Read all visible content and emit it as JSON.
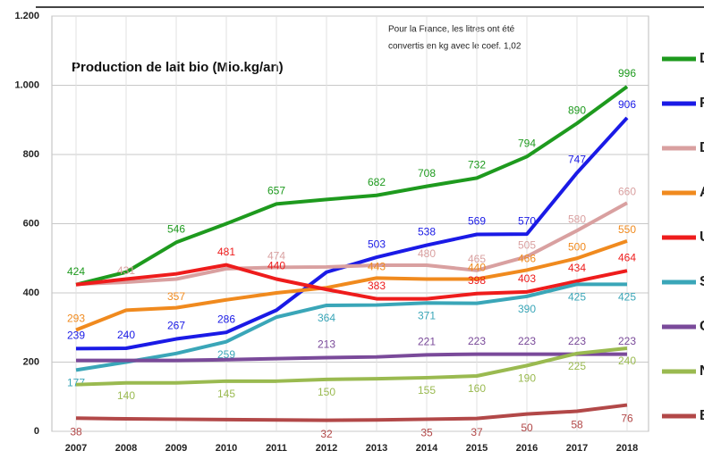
{
  "chart_data": {
    "type": "line",
    "title": "Production de lait bio (Mio.kg/an)",
    "annotation": [
      "Pour la France, les litres ont été",
      "convertis en kg avec le coef. 1,02"
    ],
    "categories": [
      "2007",
      "2008",
      "2009",
      "2010",
      "2011",
      "2012",
      "2013",
      "2014",
      "2015",
      "2016",
      "2017",
      "2018"
    ],
    "ylim": [
      0,
      1200
    ],
    "yticks": [
      0,
      200,
      400,
      600,
      800,
      {
        "value": 1000,
        "label": "1.000"
      },
      {
        "value": 1200,
        "label": "1.200"
      }
    ],
    "grid": true,
    "series": [
      {
        "name": "DE",
        "color": "#1e9a1e",
        "values": [
          424,
          460,
          546,
          600,
          657,
          670,
          682,
          708,
          732,
          794,
          890,
          996
        ],
        "value_labels": [
          "424",
          null,
          "546",
          null,
          "657",
          null,
          "682",
          "708",
          "732",
          "794",
          "890",
          "996"
        ]
      },
      {
        "name": "FR",
        "color": "#1a1ae6",
        "values": [
          239,
          240,
          267,
          286,
          350,
          460,
          503,
          538,
          569,
          570,
          747,
          906
        ],
        "value_labels": [
          "239",
          "240",
          "267",
          "286",
          null,
          null,
          "503",
          "538",
          "569",
          "570",
          "747",
          "906"
        ]
      },
      {
        "name": "DK",
        "color": "#d9a0a0",
        "values": [
          425,
          431,
          440,
          470,
          474,
          475,
          480,
          480,
          465,
          505,
          580,
          660
        ],
        "value_labels": [
          null,
          "431",
          null,
          null,
          "474",
          null,
          null,
          "480",
          "465",
          "505",
          "580",
          "660"
        ]
      },
      {
        "name": "AT",
        "color": "#f08a1e",
        "values": [
          293,
          350,
          357,
          380,
          400,
          415,
          443,
          440,
          440,
          466,
          500,
          550
        ],
        "value_labels": [
          "293",
          null,
          "357",
          null,
          null,
          null,
          "443",
          null,
          "440",
          "466",
          "500",
          "550"
        ]
      },
      {
        "name": "UK",
        "color": "#ee1c1c",
        "values": [
          424,
          440,
          455,
          481,
          440,
          410,
          383,
          383,
          398,
          403,
          434,
          464
        ],
        "value_labels": [
          null,
          null,
          null,
          "481",
          "440",
          null,
          "383",
          null,
          "398",
          "403",
          "434",
          "464"
        ]
      },
      {
        "name": "SE",
        "color": "#3aa6b8",
        "values": [
          177,
          200,
          225,
          259,
          330,
          364,
          365,
          371,
          370,
          390,
          425,
          425
        ],
        "value_labels": [
          "177",
          null,
          null,
          "259",
          null,
          "364",
          null,
          "371",
          null,
          "390",
          "425",
          "425"
        ]
      },
      {
        "name": "CH",
        "color": "#7a4a9a",
        "values": [
          205,
          205,
          205,
          207,
          210,
          213,
          215,
          221,
          223,
          223,
          223,
          223
        ],
        "value_labels": [
          null,
          null,
          null,
          null,
          null,
          "213",
          null,
          "221",
          "223",
          "223",
          "223",
          "223"
        ]
      },
      {
        "name": "NL",
        "color": "#9aba50",
        "values": [
          135,
          140,
          140,
          145,
          145,
          150,
          152,
          155,
          160,
          190,
          225,
          240
        ],
        "value_labels": [
          null,
          "140",
          null,
          "145",
          null,
          "150",
          null,
          "155",
          "160",
          "190",
          "225",
          "240"
        ]
      },
      {
        "name": "BE",
        "color": "#b24848",
        "values": [
          38,
          36,
          35,
          34,
          33,
          32,
          33,
          35,
          37,
          50,
          58,
          76
        ],
        "value_labels": [
          "38",
          null,
          null,
          null,
          null,
          "32",
          null,
          "35",
          "37",
          "50",
          "58",
          "76"
        ]
      }
    ]
  }
}
